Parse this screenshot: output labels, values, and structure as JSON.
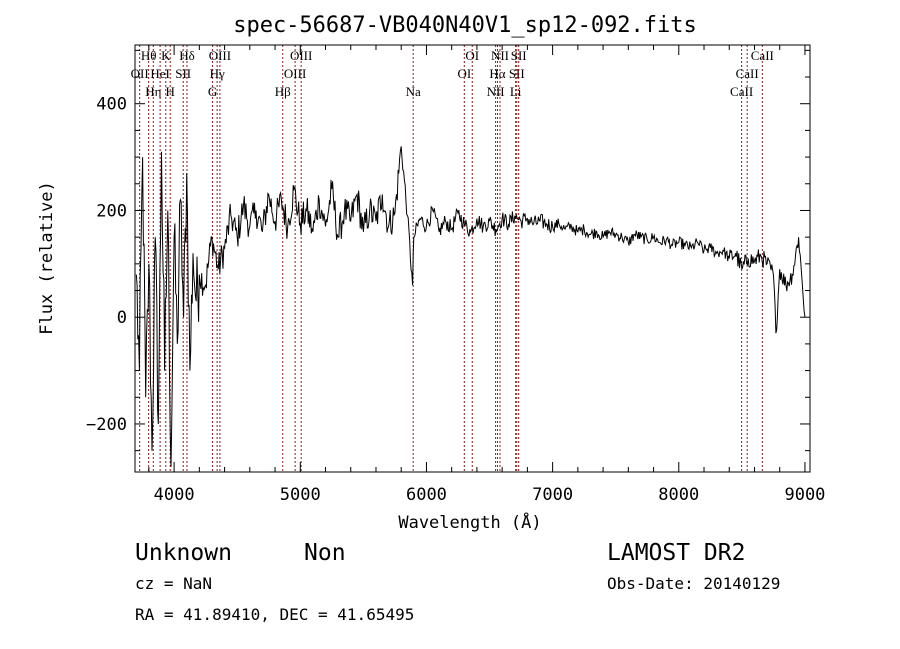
{
  "chart_data": {
    "type": "line",
    "title": "spec-56687-VB040N40V1_sp12-092.fits",
    "xlabel": "Wavelength (Å)",
    "ylabel": "Flux (relative)",
    "xlim": [
      3690,
      9040
    ],
    "ylim": [
      -290,
      510
    ],
    "xticks": [
      4000,
      5000,
      6000,
      7000,
      8000,
      9000
    ],
    "yticks": [
      -200,
      0,
      200,
      400
    ],
    "grid": false,
    "series": [
      {
        "name": "spectrum",
        "x": [
          3700,
          3725,
          3750,
          3775,
          3800,
          3825,
          3850,
          3875,
          3900,
          3925,
          3950,
          3975,
          4000,
          4025,
          4050,
          4075,
          4100,
          4125,
          4150,
          4175,
          4200,
          4250,
          4300,
          4350,
          4400,
          4450,
          4500,
          4550,
          4600,
          4650,
          4700,
          4750,
          4800,
          4850,
          4900,
          4950,
          5000,
          5050,
          5100,
          5150,
          5200,
          5250,
          5300,
          5350,
          5400,
          5450,
          5500,
          5550,
          5600,
          5650,
          5700,
          5750,
          5800,
          5850,
          5890,
          5900,
          5950,
          6000,
          6050,
          6100,
          6150,
          6200,
          6250,
          6300,
          6350,
          6400,
          6450,
          6500,
          6550,
          6600,
          6650,
          6700,
          6750,
          6800,
          6850,
          6900,
          6950,
          7000,
          7050,
          7100,
          7150,
          7200,
          7250,
          7300,
          7350,
          7400,
          7450,
          7500,
          7550,
          7600,
          7650,
          7700,
          7750,
          7800,
          7850,
          7900,
          7950,
          8000,
          8050,
          8100,
          8150,
          8200,
          8250,
          8300,
          8350,
          8400,
          8450,
          8500,
          8550,
          8600,
          8650,
          8700,
          8750,
          8770,
          8800,
          8850,
          8900,
          8950,
          8980,
          9000
        ],
        "y": [
          80,
          -100,
          300,
          -150,
          100,
          -250,
          150,
          -200,
          310,
          -100,
          200,
          -280,
          150,
          -50,
          220,
          0,
          270,
          -100,
          120,
          30,
          80,
          60,
          150,
          90,
          130,
          190,
          150,
          210,
          170,
          200,
          160,
          230,
          180,
          220,
          170,
          240,
          175,
          200,
          160,
          220,
          170,
          240,
          150,
          200,
          180,
          230,
          160,
          200,
          180,
          230,
          170,
          195,
          320,
          190,
          60,
          150,
          185,
          170,
          200,
          160,
          180,
          165,
          195,
          175,
          160,
          185,
          170,
          180,
          165,
          185,
          175,
          190,
          180,
          185,
          175,
          180,
          175,
          170,
          175,
          165,
          170,
          160,
          165,
          155,
          160,
          150,
          160,
          155,
          150,
          140,
          155,
          150,
          145,
          150,
          140,
          145,
          135,
          140,
          135,
          130,
          140,
          125,
          130,
          120,
          125,
          110,
          120,
          90,
          110,
          105,
          115,
          100,
          80,
          -30,
          90,
          60,
          80,
          150,
          60,
          0
        ]
      }
    ],
    "lines": [
      {
        "label": "OII",
        "wave": 3727
      },
      {
        "label": "Hθ",
        "wave": 3798
      },
      {
        "label": "Hη",
        "wave": 3835
      },
      {
        "label": "HeI",
        "wave": 3889
      },
      {
        "label": "K",
        "wave": 3934
      },
      {
        "label": "H",
        "wave": 3969
      },
      {
        "label": "SII",
        "wave": 4072
      },
      {
        "label": "Hδ",
        "wave": 4102
      },
      {
        "label": "G",
        "wave": 4305
      },
      {
        "label": "Hγ",
        "wave": 4341
      },
      {
        "label": "OIII",
        "wave": 4363
      },
      {
        "label": "Hβ",
        "wave": 4861
      },
      {
        "label": "OIII",
        "wave": 4959
      },
      {
        "label": "OIII",
        "wave": 5007
      },
      {
        "label": "Na",
        "wave": 5895
      },
      {
        "label": "OI",
        "wave": 6300
      },
      {
        "label": "OI",
        "wave": 6363
      },
      {
        "label": "NII",
        "wave": 6548
      },
      {
        "label": "Hα",
        "wave": 6563
      },
      {
        "label": "NII",
        "wave": 6583
      },
      {
        "label": "Li",
        "wave": 6707
      },
      {
        "label": "SII",
        "wave": 6716
      },
      {
        "label": "SII",
        "wave": 6731
      },
      {
        "label": "CaII",
        "wave": 8498
      },
      {
        "label": "CaII",
        "wave": 8542
      },
      {
        "label": "CaII",
        "wave": 8662
      }
    ],
    "line_color": "#8b1a1a"
  },
  "info": {
    "class": "Unknown",
    "subclass": "Non",
    "survey": "LAMOST DR2",
    "cz": "cz = NaN",
    "obs_date": "Obs-Date: 20140129",
    "coords": "RA =  41.89410, DEC =  41.65495"
  }
}
